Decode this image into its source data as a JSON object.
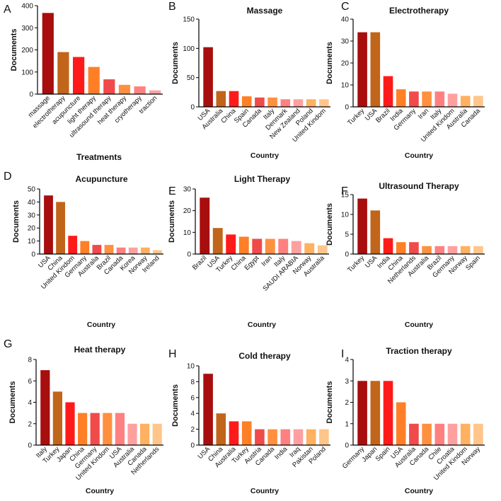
{
  "colors": [
    "#a80e0e",
    "#c0651a",
    "#ff1a1a",
    "#ff7f27",
    "#f04a4a",
    "#ff9040",
    "#ff8080",
    "#ffa0a0",
    "#ffb060",
    "#ffc58a"
  ],
  "chart_data": [
    {
      "panel": "A",
      "type": "bar",
      "title": "",
      "xlabel": "Treatments",
      "ylabel": "Documents",
      "ylim": [
        0,
        400
      ],
      "yticks": [
        0,
        100,
        200,
        300,
        400
      ],
      "categories": [
        "massage",
        "electrotherapy",
        "acupuncture",
        "light therapy",
        "ultrasound therapy",
        "heat therapy",
        "cryotherapy",
        "traction"
      ],
      "values": [
        367,
        190,
        168,
        123,
        67,
        42,
        35,
        17
      ]
    },
    {
      "panel": "B",
      "type": "bar",
      "title": "Massage",
      "xlabel": "Country",
      "ylabel": "Documents",
      "ylim": [
        0,
        150
      ],
      "yticks": [
        0,
        50,
        100,
        150
      ],
      "categories": [
        "USA",
        "Australia",
        "China",
        "Spain",
        "Canada",
        "Italy",
        "Denmark",
        "New Zealand",
        "Poland",
        "United Kindom"
      ],
      "values": [
        102,
        27,
        27,
        18,
        16,
        16,
        13,
        13,
        13,
        13
      ]
    },
    {
      "panel": "C",
      "type": "bar",
      "title": "Electrotherapy",
      "xlabel": "Country",
      "ylabel": "Documents",
      "ylim": [
        0,
        40
      ],
      "yticks": [
        0,
        10,
        20,
        30,
        40
      ],
      "categories": [
        "Turkey",
        "USA",
        "Brazil",
        "India",
        "Germany",
        "Iran",
        "Italy",
        "United Kindom",
        "Australia",
        "Canada"
      ],
      "values": [
        34,
        34,
        14,
        8,
        7,
        7,
        7,
        6,
        5,
        5
      ]
    },
    {
      "panel": "D",
      "type": "bar",
      "title": "Acupuncture",
      "xlabel": "Country",
      "ylabel": "Documents",
      "ylim": [
        0,
        50
      ],
      "yticks": [
        0,
        10,
        20,
        30,
        40,
        50
      ],
      "categories": [
        "USA",
        "China",
        "United Kindom",
        "Germany",
        "Australia",
        "Brazil",
        "Canada",
        "Korea",
        "Norway",
        "Ireland"
      ],
      "values": [
        45,
        40,
        14,
        10,
        7,
        7,
        5,
        5,
        5,
        3
      ]
    },
    {
      "panel": "E",
      "type": "bar",
      "title": "Light Therapy",
      "xlabel": "Country",
      "ylabel": "Documents",
      "ylim": [
        0,
        30
      ],
      "yticks": [
        0,
        10,
        20,
        30
      ],
      "categories": [
        "Brazil",
        "USA",
        "Turkey",
        "China",
        "Egypt",
        "Iran",
        "Italy",
        "SAUDI ARABIA",
        "Norway",
        "Australia"
      ],
      "values": [
        26,
        12,
        9,
        8,
        7,
        7,
        7,
        6,
        5,
        4
      ]
    },
    {
      "panel": "F",
      "type": "bar",
      "title": "Ultrasound Therapy",
      "xlabel": "Country",
      "ylabel": "Documents",
      "ylim": [
        0,
        15
      ],
      "yticks": [
        0,
        5,
        10,
        15
      ],
      "categories": [
        "Turkey",
        "USA",
        "India",
        "China",
        "Netherlands",
        "Australia",
        "Brazil",
        "Germany",
        "Norway",
        "Spain"
      ],
      "values": [
        14,
        11,
        4,
        3,
        3,
        2,
        2,
        2,
        2,
        2
      ]
    },
    {
      "panel": "G",
      "type": "bar",
      "title": "Heat therapy",
      "xlabel": "Country",
      "ylabel": "Documents",
      "ylim": [
        0,
        8
      ],
      "yticks": [
        0,
        2,
        4,
        6,
        8
      ],
      "categories": [
        "Italy",
        "Turkey",
        "Japan",
        "China",
        "Germany",
        "United Kindom",
        "USA",
        "Australia",
        "Canada",
        "Netherlands"
      ],
      "values": [
        7,
        5,
        4,
        3,
        3,
        3,
        3,
        2,
        2,
        2
      ]
    },
    {
      "panel": "H",
      "type": "bar",
      "title": "Cold therapy",
      "xlabel": "Country",
      "ylabel": "Documents",
      "ylim": [
        0,
        10
      ],
      "yticks": [
        0,
        2,
        4,
        6,
        8,
        10
      ],
      "categories": [
        "USA",
        "China",
        "Australia",
        "Turkey",
        "Austria",
        "Canada",
        "India",
        "Iraq",
        "Pakistan",
        "Poland"
      ],
      "values": [
        9,
        4,
        3,
        3,
        2,
        2,
        2,
        2,
        2,
        2
      ]
    },
    {
      "panel": "I",
      "type": "bar",
      "title": "Traction therapy",
      "xlabel": "Country",
      "ylabel": "Documents",
      "ylim": [
        0,
        4
      ],
      "yticks": [
        0,
        1,
        2,
        3,
        4
      ],
      "categories": [
        "Germany",
        "Japan",
        "Spain",
        "USA",
        "Australia",
        "Canada",
        "Chile",
        "Croatia",
        "United Kindom",
        "Norway"
      ],
      "values": [
        3,
        3,
        3,
        2,
        1,
        1,
        1,
        1,
        1,
        1
      ]
    }
  ]
}
